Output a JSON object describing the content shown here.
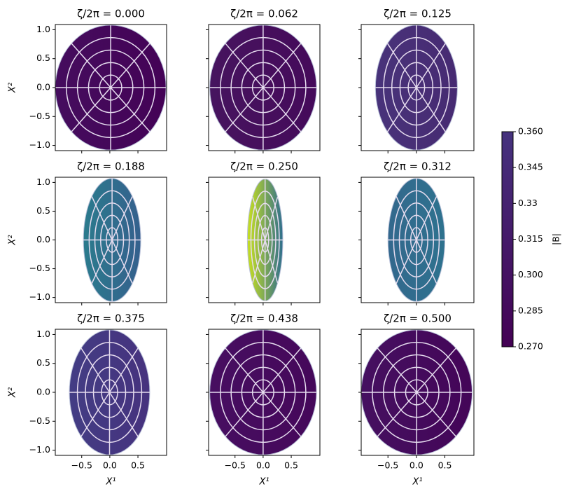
{
  "chart_data": {
    "type": "cross-sections",
    "xlabel": "X¹",
    "ylabel": "X²",
    "xlim": [
      -0.97,
      1.01
    ],
    "ylim": [
      -1.09,
      1.09
    ],
    "xticks": [
      {
        "value": -0.5,
        "label": "−0.5"
      },
      {
        "value": 0,
        "label": "0.0"
      },
      0.5
    ],
    "yticks": [
      {
        "value": -1,
        "label": "−1.0"
      },
      {
        "value": -0.5,
        "label": "−0.5"
      },
      {
        "value": 0,
        "label": "0.0"
      },
      0.5,
      {
        "value": 1,
        "label": "1.0"
      }
    ],
    "colorbar": {
      "label": "|B|",
      "lim": [
        0.27,
        0.36
      ],
      "ticks": [
        {
          "value": 0.27,
          "label": "0.270"
        },
        {
          "value": 0.285,
          "label": "0.285"
        },
        {
          "value": 0.3,
          "label": "0.300"
        },
        0.315,
        0.33,
        0.345,
        {
          "value": 0.36,
          "label": "0.360"
        }
      ],
      "colors": [
        "#440154",
        "#46337e"
      ]
    },
    "panels": [
      {
        "title": "ζ/2π = 0.000",
        "x_range": [
          -0.97,
          1.0
        ],
        "y_range": [
          -1.08,
          1.08
        ],
        "colors": [
          "#450d5e",
          "#440256"
        ]
      },
      {
        "title": "ζ/2π = 0.062",
        "x_range": [
          -0.95,
          0.95
        ],
        "y_range": [
          -1.08,
          1.08
        ],
        "colors": [
          "#46145f",
          "#450a5a"
        ]
      },
      {
        "title": "ζ/2π = 0.125",
        "x_range": [
          -0.72,
          0.72
        ],
        "y_range": [
          -1.08,
          1.08
        ],
        "colors": [
          "#48337a",
          "#472a72"
        ]
      },
      {
        "title": "ζ/2π = 0.188",
        "x_range": [
          -0.47,
          0.55
        ],
        "y_range": [
          -1.07,
          1.07
        ],
        "colors": [
          "#2b7b8d",
          "#35608d"
        ]
      },
      {
        "title": "ζ/2π = 0.250",
        "x_range": [
          -0.28,
          0.35
        ],
        "y_range": [
          -1.06,
          1.06
        ],
        "colors": [
          "#c8e020",
          "#2f6f8e"
        ]
      },
      {
        "title": "ζ/2π = 0.312",
        "x_range": [
          -0.5,
          0.5
        ],
        "y_range": [
          -1.07,
          1.07
        ],
        "colors": [
          "#33688d",
          "#2e728e"
        ]
      },
      {
        "title": "ζ/2π = 0.375",
        "x_range": [
          -0.72,
          0.71
        ],
        "y_range": [
          -1.08,
          1.08
        ],
        "colors": [
          "#433d84",
          "#46327e"
        ]
      },
      {
        "title": "ζ/2π = 0.438",
        "x_range": [
          -0.95,
          0.95
        ],
        "y_range": [
          -1.08,
          1.08
        ],
        "colors": [
          "#470e61",
          "#45085a"
        ]
      },
      {
        "title": "ζ/2π = 0.500",
        "x_range": [
          -0.97,
          0.98
        ],
        "y_range": [
          -1.08,
          1.08
        ],
        "colors": [
          "#451060",
          "#440558"
        ]
      }
    ]
  }
}
